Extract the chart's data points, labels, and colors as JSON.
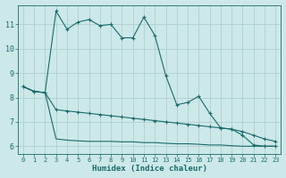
{
  "xlabel": "Humidex (Indice chaleur)",
  "background_color": "#cce8e8",
  "grid_color": "#b0d0d0",
  "line_color": "#1a6b6b",
  "xlim": [
    -0.5,
    23.5
  ],
  "ylim": [
    5.7,
    11.8
  ],
  "yticks": [
    6,
    7,
    8,
    9,
    10,
    11
  ],
  "xticks": [
    0,
    1,
    2,
    3,
    4,
    5,
    6,
    7,
    8,
    9,
    10,
    11,
    12,
    13,
    14,
    15,
    16,
    17,
    18,
    19,
    20,
    21,
    22,
    23
  ],
  "line1_x": [
    0,
    1,
    2,
    3,
    4,
    5,
    6,
    7,
    8,
    9,
    10,
    11,
    12,
    13,
    14,
    15,
    16,
    17,
    18,
    19,
    20,
    21,
    22,
    23
  ],
  "line1_y": [
    8.45,
    8.25,
    8.2,
    11.55,
    10.8,
    11.1,
    11.2,
    10.95,
    11.0,
    10.45,
    10.45,
    11.3,
    10.55,
    8.9,
    7.7,
    7.8,
    8.05,
    7.35,
    6.75,
    6.7,
    6.45,
    6.05,
    6.0,
    6.0
  ],
  "line2_x": [
    0,
    1,
    2,
    3,
    4,
    5,
    6,
    7,
    8,
    9,
    10,
    11,
    12,
    13,
    14,
    15,
    16,
    17,
    18,
    19,
    20,
    21,
    22,
    23
  ],
  "line2_y": [
    8.45,
    8.25,
    8.2,
    7.5,
    7.45,
    7.4,
    7.35,
    7.3,
    7.25,
    7.2,
    7.15,
    7.1,
    7.05,
    7.0,
    6.95,
    6.9,
    6.85,
    6.8,
    6.75,
    6.7,
    6.6,
    6.45,
    6.3,
    6.2
  ],
  "line3_x": [
    0,
    1,
    2,
    3,
    4,
    5,
    6,
    7,
    8,
    9,
    10,
    11,
    12,
    13,
    14,
    15,
    16,
    17,
    18,
    19,
    20,
    21,
    22,
    23
  ],
  "line3_y": [
    8.45,
    8.25,
    8.2,
    6.3,
    6.25,
    6.22,
    6.2,
    6.2,
    6.2,
    6.18,
    6.18,
    6.15,
    6.15,
    6.12,
    6.1,
    6.1,
    6.08,
    6.05,
    6.05,
    6.02,
    6.0,
    6.0,
    6.0,
    6.0
  ]
}
